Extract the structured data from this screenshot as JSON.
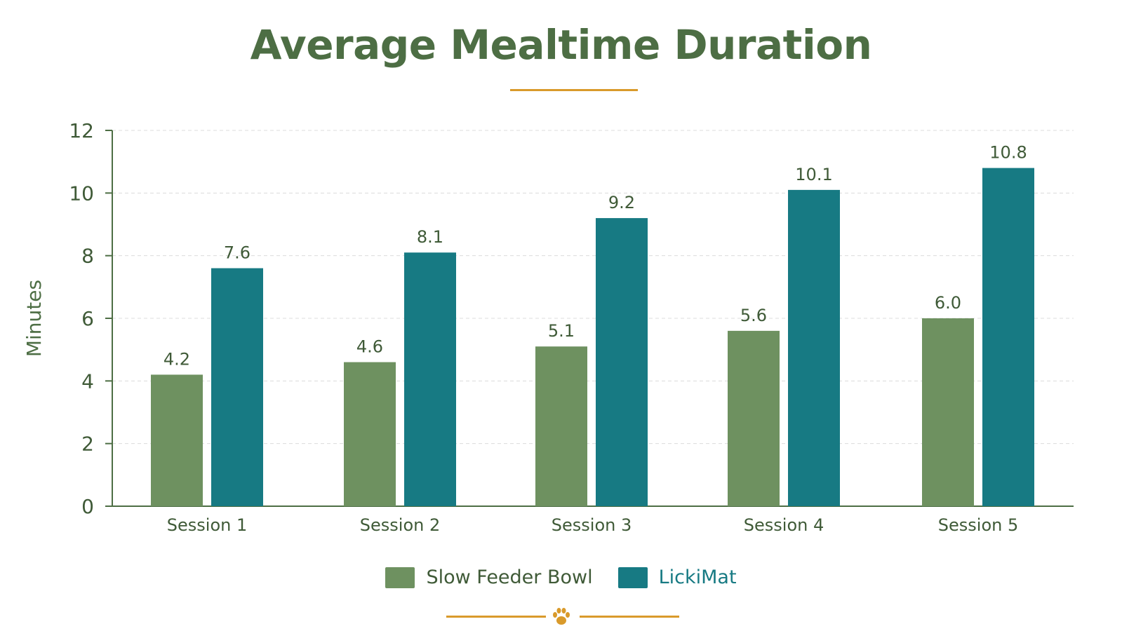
{
  "chart_data": {
    "type": "bar",
    "title": "Average Mealtime Duration",
    "ylabel": "Minutes",
    "xlabel": "",
    "categories": [
      "Session 1",
      "Session 2",
      "Session 3",
      "Session 4",
      "Session 5"
    ],
    "series": [
      {
        "name": "Slow Feeder Bowl",
        "values": [
          4.2,
          4.6,
          5.1,
          5.6,
          6.0
        ],
        "labels": [
          "4.2",
          "4.6",
          "5.1",
          "5.6",
          "6.0"
        ],
        "color": "#6e9160"
      },
      {
        "name": "LickiMat",
        "values": [
          7.6,
          8.1,
          9.2,
          10.1,
          10.8
        ],
        "labels": [
          "7.6",
          "8.1",
          "9.2",
          "10.1",
          "10.8"
        ],
        "color": "#177a83"
      }
    ],
    "ylim": [
      0,
      12
    ],
    "yticks": [
      "0",
      "2",
      "4",
      "6",
      "8",
      "10",
      "12"
    ],
    "grid": true,
    "legend_position": "bottom-center"
  },
  "colors": {
    "title": "#4d6e44",
    "accent": "#d99a2b",
    "axis": "#4d6e44",
    "grid": "#dcdcdc",
    "label_text": "#3f5a37"
  },
  "footer": {
    "icon": "paw-icon"
  }
}
